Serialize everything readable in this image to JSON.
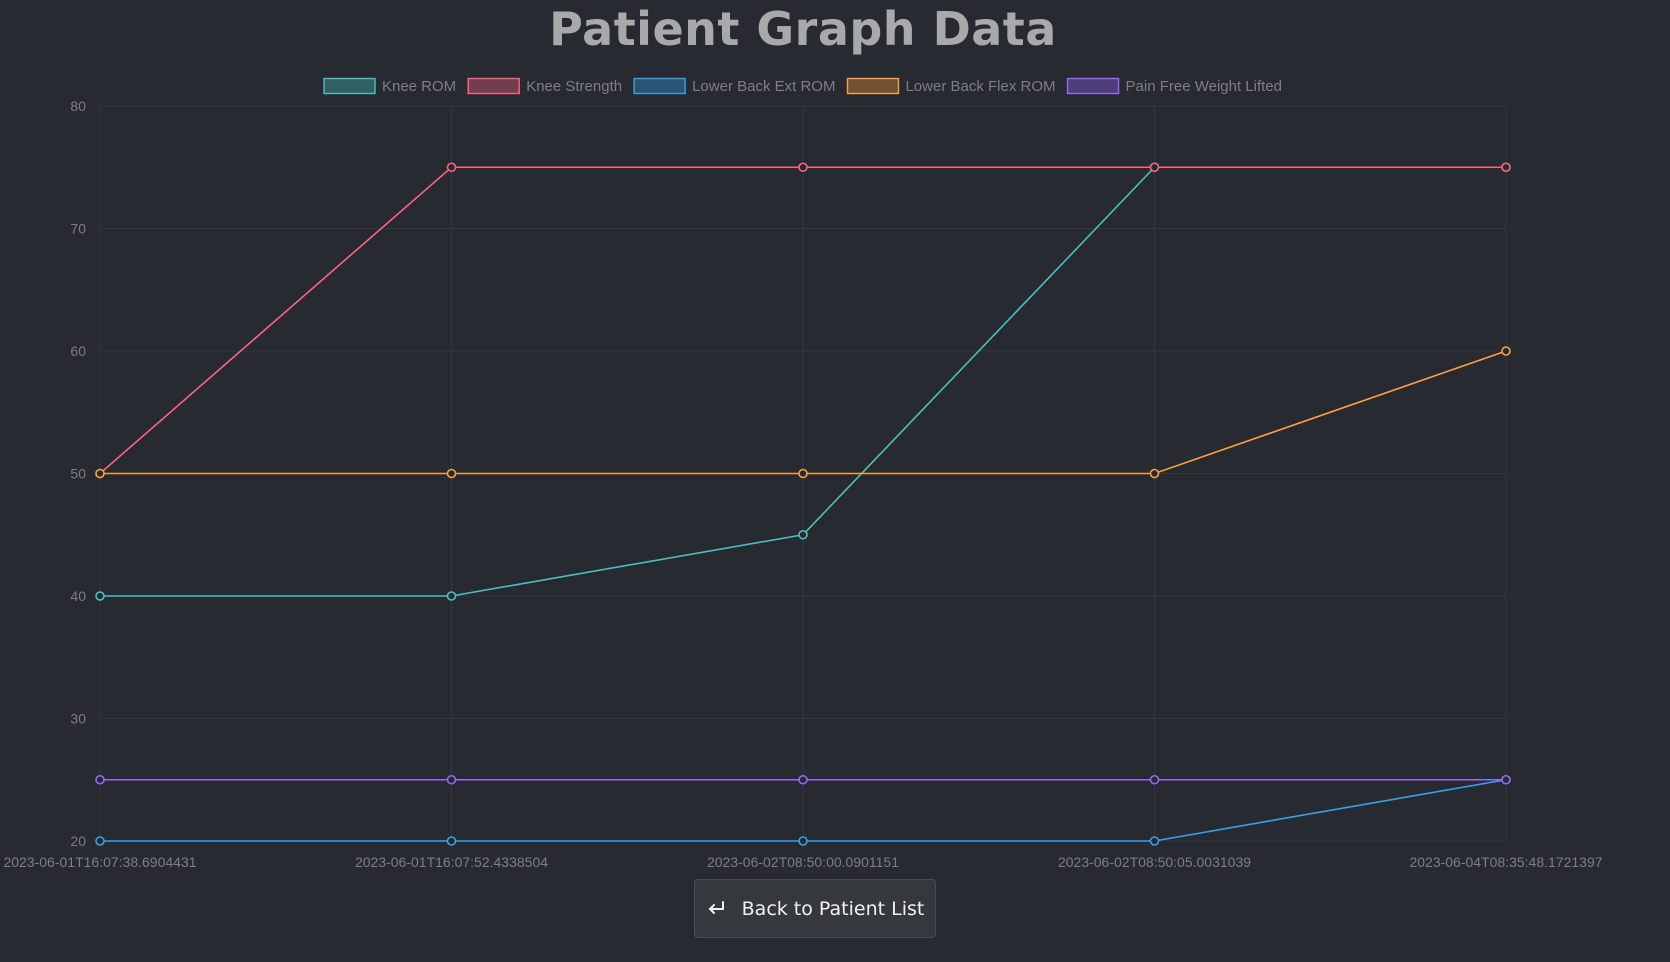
{
  "page": {
    "title": "Patient Graph Data",
    "back_button_label": "Back to Patient List",
    "back_button_icon": "return-arrow-icon"
  },
  "colors": {
    "background": "#272a30",
    "grid": "#33363c",
    "tick_text": "#7d7f84"
  },
  "chart_data": {
    "type": "line",
    "title": "",
    "xlabel": "",
    "ylabel": "",
    "ylim": [
      20,
      80
    ],
    "yticks": [
      20,
      30,
      40,
      50,
      60,
      70,
      80
    ],
    "grid": true,
    "legend_position": "top-center",
    "categories": [
      "2023-06-01T16:07:38.6904431",
      "2023-06-01T16:07:52.4338504",
      "2023-06-02T08:50:00.0901151",
      "2023-06-02T08:50:05.0031039",
      "2023-06-04T08:35:48.1721397"
    ],
    "series": [
      {
        "name": "Knee ROM",
        "color": "#4bc0c0",
        "values": [
          40,
          40,
          45,
          75,
          75
        ]
      },
      {
        "name": "Knee Strength",
        "color": "#ff6384",
        "values": [
          50,
          75,
          75,
          75,
          75
        ]
      },
      {
        "name": "Lower Back Ext ROM",
        "color": "#36a2eb",
        "values": [
          20,
          20,
          20,
          20,
          25
        ]
      },
      {
        "name": "Lower Back Flex ROM",
        "color": "#ff9f40",
        "values": [
          50,
          50,
          50,
          50,
          60
        ]
      },
      {
        "name": "Pain Free Weight Lifted",
        "color": "#9966ff",
        "values": [
          25,
          25,
          25,
          25,
          25
        ]
      }
    ]
  }
}
